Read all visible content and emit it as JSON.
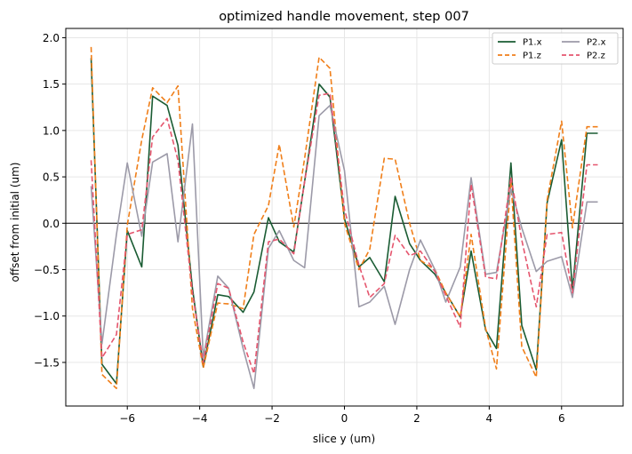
{
  "chart_data": {
    "type": "line",
    "title": "optimized handle movement, step 007",
    "xlabel": "slice y (um)",
    "ylabel": "offset from initial (um)",
    "xlim": [
      -7.7,
      7.7
    ],
    "ylim": [
      -1.97,
      2.1
    ],
    "xticks": [
      -6,
      -4,
      -2,
      0,
      2,
      4,
      6
    ],
    "yticks": [
      -1.5,
      -1.0,
      -0.5,
      0.0,
      0.5,
      1.0,
      1.5,
      2.0
    ],
    "xtick_labels": [
      "−6",
      "−4",
      "−2",
      "0",
      "2",
      "4",
      "6"
    ],
    "ytick_labels": [
      "−1.5",
      "−1.0",
      "−0.5",
      "0.0",
      "0.5",
      "1.0",
      "1.5",
      "2.0"
    ],
    "grid": true,
    "zero_line": true,
    "legend_position": "top-right",
    "legend_columns": 2,
    "x": [
      -7.0,
      -6.7,
      -6.3,
      -6.0,
      -5.6,
      -5.3,
      -4.9,
      -4.6,
      -4.2,
      -3.9,
      -3.5,
      -3.2,
      -2.8,
      -2.5,
      -2.1,
      -1.8,
      -1.4,
      -1.1,
      -0.7,
      -0.4,
      0.0,
      0.4,
      0.7,
      1.1,
      1.4,
      1.8,
      2.1,
      2.5,
      2.8,
      3.2,
      3.5,
      3.9,
      4.2,
      4.6,
      4.9,
      5.3,
      5.6,
      6.0,
      6.3,
      6.7,
      7.0
    ],
    "series": [
      {
        "name": "P1.x",
        "color": "#1a5c33",
        "dash": "solid",
        "values": [
          1.78,
          -1.52,
          -1.73,
          -0.08,
          -0.47,
          1.37,
          1.27,
          0.84,
          -0.7,
          -1.55,
          -0.77,
          -0.79,
          -0.96,
          -0.74,
          0.06,
          -0.2,
          -0.31,
          0.45,
          1.5,
          1.36,
          0.05,
          -0.47,
          -0.37,
          -0.63,
          0.29,
          -0.22,
          -0.4,
          -0.55,
          -0.75,
          -1.01,
          -0.3,
          -1.15,
          -1.35,
          0.65,
          -1.1,
          -1.58,
          0.22,
          0.9,
          -0.72,
          0.97,
          0.97
        ]
      },
      {
        "name": "P1.z",
        "color": "#f07f1a",
        "dash": "dashed",
        "values": [
          1.9,
          -1.63,
          -1.78,
          -0.02,
          0.9,
          1.46,
          1.3,
          1.48,
          -0.92,
          -1.56,
          -0.86,
          -0.87,
          -0.92,
          -0.12,
          0.19,
          0.85,
          -0.04,
          0.7,
          1.79,
          1.67,
          0.0,
          -0.5,
          -0.28,
          0.7,
          0.69,
          0.0,
          -0.4,
          -0.5,
          -0.75,
          -1.01,
          -0.12,
          -1.13,
          -1.57,
          0.45,
          -1.33,
          -1.66,
          0.25,
          1.1,
          -0.05,
          1.04,
          1.04
        ]
      },
      {
        "name": "P2.x",
        "color": "#9c9aa8",
        "dash": "solid",
        "values": [
          0.4,
          -1.3,
          -0.12,
          0.65,
          -0.14,
          0.66,
          0.75,
          -0.2,
          1.07,
          -1.45,
          -0.57,
          -0.7,
          -1.35,
          -1.78,
          -0.27,
          -0.08,
          -0.4,
          -0.48,
          1.16,
          1.27,
          0.57,
          -0.9,
          -0.85,
          -0.68,
          -1.09,
          -0.5,
          -0.18,
          -0.5,
          -0.85,
          -0.47,
          0.49,
          -0.55,
          -0.53,
          0.37,
          -0.05,
          -0.52,
          -0.41,
          -0.36,
          -0.8,
          0.23,
          0.23
        ]
      },
      {
        "name": "P2.z",
        "color": "#e5566e",
        "dash": "dashed",
        "values": [
          0.68,
          -1.45,
          -1.2,
          -0.12,
          -0.07,
          0.93,
          1.13,
          0.68,
          -0.75,
          -1.5,
          -0.65,
          -0.7,
          -1.28,
          -1.62,
          -0.2,
          -0.17,
          -0.33,
          0.45,
          1.38,
          1.4,
          0.15,
          -0.45,
          -0.8,
          -0.65,
          -0.13,
          -0.35,
          -0.3,
          -0.52,
          -0.78,
          -1.12,
          0.42,
          -0.58,
          -0.6,
          0.5,
          -0.18,
          -0.9,
          -0.12,
          -0.1,
          -0.75,
          0.63,
          0.63
        ]
      }
    ]
  }
}
